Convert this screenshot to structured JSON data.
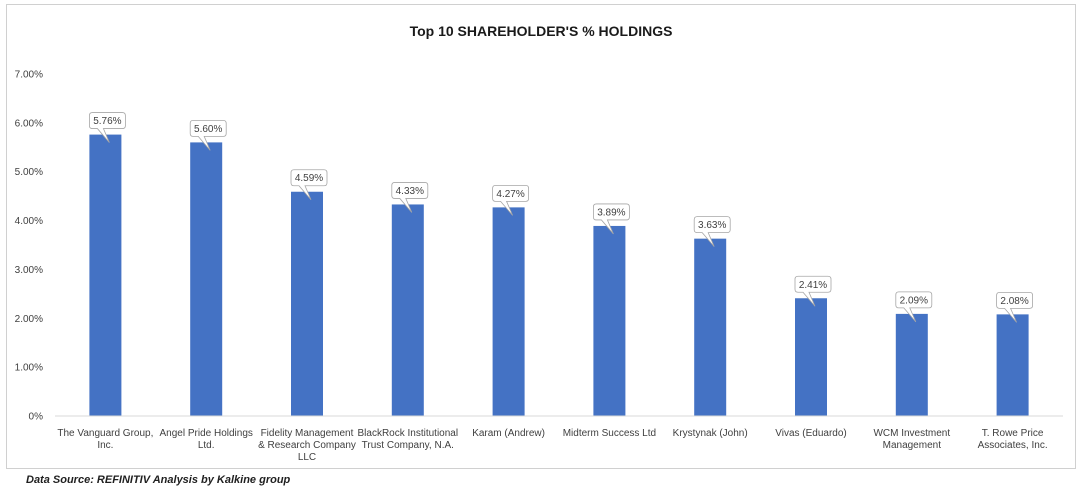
{
  "chart_data": {
    "type": "bar",
    "title": "Top 10 SHAREHOLDER'S % HOLDINGS",
    "categories": [
      [
        "The Vanguard Group,",
        "Inc."
      ],
      [
        "Angel Pride Holdings",
        "Ltd."
      ],
      [
        "Fidelity Management",
        "& Research Company",
        "LLC"
      ],
      [
        "BlackRock Institutional",
        "Trust Company, N.A."
      ],
      [
        "Karam (Andrew)"
      ],
      [
        "Midterm Success Ltd"
      ],
      [
        "Krystynak (John)"
      ],
      [
        "Vivas (Eduardo)"
      ],
      [
        "WCM Investment",
        "Management"
      ],
      [
        "T. Rowe Price",
        "Associates, Inc."
      ]
    ],
    "values": [
      5.76,
      5.6,
      4.59,
      4.33,
      4.27,
      3.89,
      3.63,
      2.41,
      2.09,
      2.08
    ],
    "data_labels": [
      "5.76%",
      "5.60%",
      "4.59%",
      "4.33%",
      "4.27%",
      "3.89%",
      "3.63%",
      "2.41%",
      "2.09%",
      "2.08%"
    ],
    "ylim": [
      0,
      7
    ],
    "y_ticks": [
      0,
      1,
      2,
      3,
      4,
      5,
      6,
      7
    ],
    "y_tick_labels": [
      "0%",
      "1.00%",
      "2.00%",
      "3.00%",
      "4.00%",
      "5.00%",
      "6.00%",
      "7.00%"
    ],
    "xlabel": "",
    "ylabel": "",
    "grid": false,
    "legend": "none",
    "bar_color": "#4472c4"
  },
  "source_note": "Data Source: REFINITIV Analysis by Kalkine group"
}
